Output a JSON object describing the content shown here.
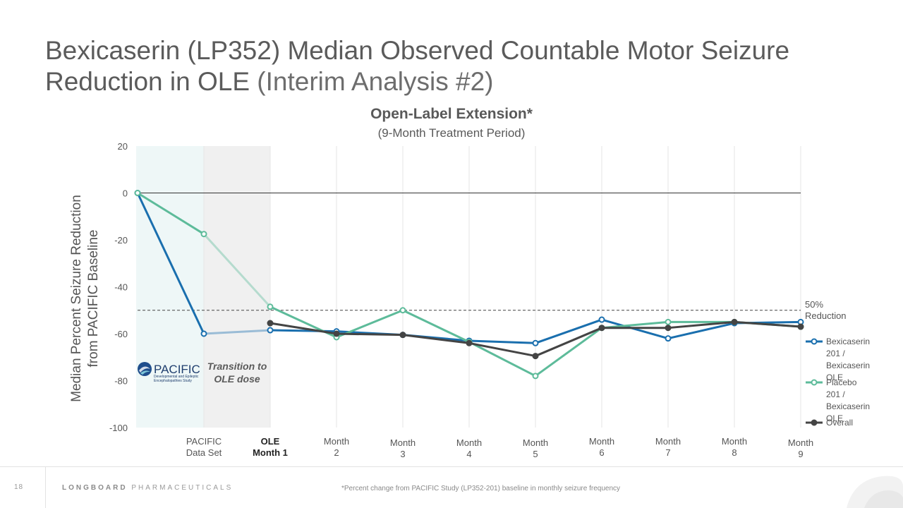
{
  "slide": {
    "title_main": "Bexicaserin (LP352) Median Observed Countable Motor Seizure Reduction in OLE",
    "title_paren": "(Interim Analysis #2)",
    "subtitle": "Open-Label Extension*",
    "subtitle2": "(9-Month Treatment Period)",
    "ylabel_line1": "Median Percent Seizure Reduction",
    "ylabel_line2": "from PACIFIC Baseline",
    "transition_note": "Transition to OLE dose",
    "logo_text": "PACIFIC",
    "logo_subtext": "Developmental and Epileptic Encephalopathies Study",
    "page_number": "18",
    "company_bold": "LONGBOARD",
    "company_rest": " PHARMACEUTICALS",
    "footnote": "*Percent change from PACIFIC Study (LP352-201) baseline in monthly seizure frequency",
    "reference_label_line1": "50%",
    "reference_label_line2": "Reduction"
  },
  "colors": {
    "bexicaserin": "#1a6fae",
    "placebo": "#5dbb9a",
    "overall": "#444444",
    "pacific_band": "#eef7f7",
    "transition_band": "#f0f0f0"
  },
  "chart_data": {
    "type": "line",
    "categories": [
      [
        "",
        ""
      ],
      [
        "PACIFIC",
        "Data Set"
      ],
      [
        "OLE",
        "Month 1"
      ],
      [
        "Month",
        "2"
      ],
      [
        "Month",
        "3"
      ],
      [
        "Month",
        "4"
      ],
      [
        "Month",
        "5"
      ],
      [
        "Month",
        "6"
      ],
      [
        "Month",
        "7"
      ],
      [
        "Month",
        "8"
      ],
      [
        "Month",
        "9"
      ]
    ],
    "bold_categories": [
      2
    ],
    "ylim": [
      -100,
      20
    ],
    "yticks": [
      20,
      0,
      -20,
      -40,
      -60,
      -80,
      -100
    ],
    "reference_line": -50,
    "series": [
      {
        "name": "Bexicaserin 201 / Bexicaserin OLE",
        "key": "bexicaserin",
        "values": [
          0,
          -60,
          -58.5,
          -59,
          -60.5,
          -63,
          -64,
          -54,
          -62,
          -55.5,
          -55
        ]
      },
      {
        "name": "Placebo 201 / Bexicaserin OLE",
        "key": "placebo",
        "values": [
          0,
          -17.5,
          -48.5,
          -61.5,
          -50,
          -63.5,
          -78,
          -57.5,
          -55,
          -55,
          -57
        ]
      },
      {
        "name": "Overall",
        "key": "overall",
        "values": [
          null,
          null,
          -55.5,
          -60,
          -60.5,
          -64,
          -69.5,
          -57.5,
          -57.5,
          -55,
          -57
        ]
      }
    ]
  }
}
